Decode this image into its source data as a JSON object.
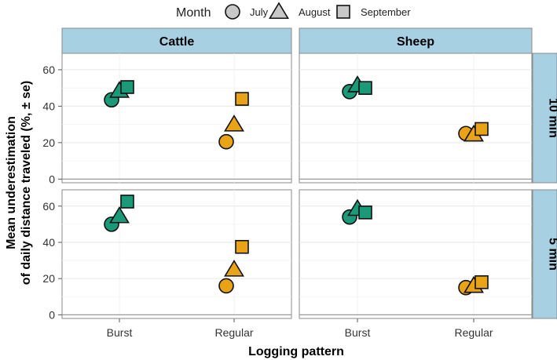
{
  "chart_data": {
    "type": "scatter",
    "legend": {
      "title": "Month",
      "position": "top",
      "entries": [
        {
          "name": "July",
          "shape": "circle"
        },
        {
          "name": "August",
          "shape": "triangle"
        },
        {
          "name": "September",
          "shape": "square"
        }
      ]
    },
    "xlabel": "Logging pattern",
    "ylabel_line1": "Mean underestimation",
    "ylabel_line2": "of daily distance traveled (%, ± se)",
    "categories": [
      "Burst",
      "Regular"
    ],
    "yticks": [
      "0",
      "20",
      "40",
      "60"
    ],
    "ylim": [
      -2,
      69
    ],
    "grid": true,
    "colors": {
      "Burst": "#1a9a78",
      "Regular": "#e8a317"
    },
    "columns": [
      "Cattle",
      "Sheep"
    ],
    "rows": [
      "10 min",
      "5 min"
    ],
    "panels": [
      {
        "column": "Cattle",
        "row": "10 min",
        "points": [
          {
            "category": "Burst",
            "month": "July",
            "value": 43.5
          },
          {
            "category": "Burst",
            "month": "August",
            "value": 48.5
          },
          {
            "category": "Burst",
            "month": "September",
            "value": 50.5
          },
          {
            "category": "Regular",
            "month": "July",
            "value": 20.5
          },
          {
            "category": "Regular",
            "month": "August",
            "value": 30
          },
          {
            "category": "Regular",
            "month": "September",
            "value": 44
          }
        ]
      },
      {
        "column": "Sheep",
        "row": "10 min",
        "points": [
          {
            "category": "Burst",
            "month": "July",
            "value": 48
          },
          {
            "category": "Burst",
            "month": "August",
            "value": 51.5
          },
          {
            "category": "Burst",
            "month": "September",
            "value": 50
          },
          {
            "category": "Regular",
            "month": "July",
            "value": 25
          },
          {
            "category": "Regular",
            "month": "August",
            "value": 24.5
          },
          {
            "category": "Regular",
            "month": "September",
            "value": 27.5
          }
        ]
      },
      {
        "column": "Cattle",
        "row": "5 min",
        "points": [
          {
            "category": "Burst",
            "month": "July",
            "value": 50
          },
          {
            "category": "Burst",
            "month": "August",
            "value": 54.5
          },
          {
            "category": "Burst",
            "month": "September",
            "value": 62.5
          },
          {
            "category": "Regular",
            "month": "July",
            "value": 16
          },
          {
            "category": "Regular",
            "month": "August",
            "value": 25
          },
          {
            "category": "Regular",
            "month": "September",
            "value": 37.5
          }
        ]
      },
      {
        "column": "Sheep",
        "row": "5 min",
        "points": [
          {
            "category": "Burst",
            "month": "July",
            "value": 54
          },
          {
            "category": "Burst",
            "month": "August",
            "value": 58.5
          },
          {
            "category": "Burst",
            "month": "September",
            "value": 56.5
          },
          {
            "category": "Regular",
            "month": "July",
            "value": 15
          },
          {
            "category": "Regular",
            "month": "August",
            "value": 16
          },
          {
            "category": "Regular",
            "month": "September",
            "value": 18
          }
        ]
      }
    ]
  }
}
